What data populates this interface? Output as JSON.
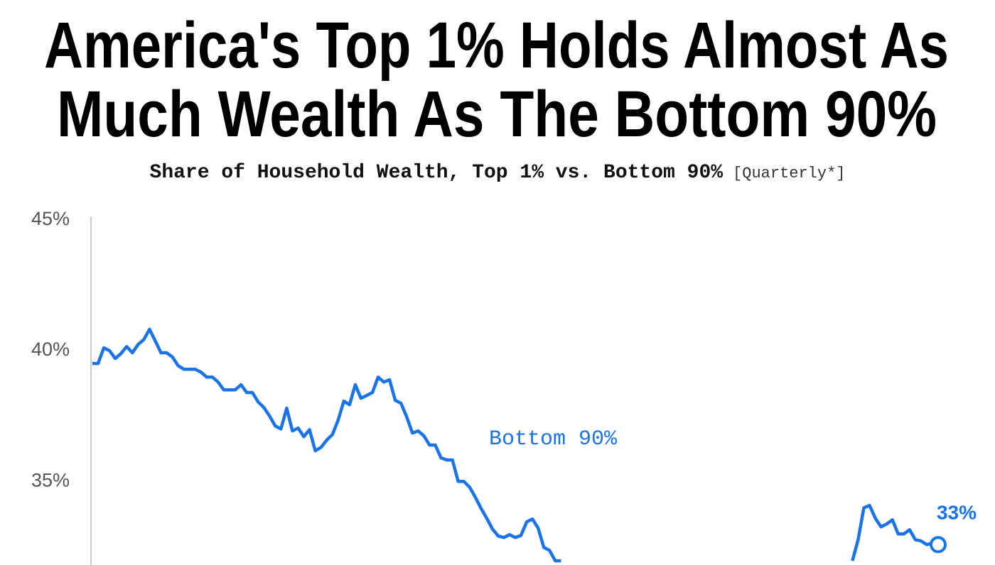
{
  "chart_data": {
    "type": "line",
    "title": [
      "America's Top 1% Holds Almost As",
      "Much Wealth As The Bottom 90%"
    ],
    "subtitle": "Share of Household Wealth, Top 1% vs. Bottom 90%",
    "subtitle_note": "[Quarterly*]",
    "ylim": [
      31.8,
      45
    ],
    "yticks": [
      {
        "value": 35,
        "label": "35%"
      },
      {
        "value": 40,
        "label": "40%"
      },
      {
        "value": 45,
        "label": "45%"
      }
    ],
    "grid": false,
    "series": [
      {
        "name": "Bottom 90%",
        "color": "#1a73e8",
        "end_label": "33%",
        "values": [
          39.51,
          39.51,
          40.11,
          40.0,
          39.7,
          39.89,
          40.16,
          39.92,
          40.24,
          40.43,
          40.82,
          40.38,
          39.92,
          39.92,
          39.76,
          39.43,
          39.29,
          39.29,
          39.29,
          39.18,
          38.99,
          38.99,
          38.8,
          38.5,
          38.5,
          38.5,
          38.7,
          38.4,
          38.4,
          38.04,
          37.83,
          37.5,
          37.12,
          37.01,
          37.8,
          36.93,
          37.04,
          36.71,
          36.98,
          36.17,
          36.3,
          36.58,
          36.79,
          37.34,
          38.07,
          37.93,
          38.7,
          38.18,
          38.29,
          38.4,
          38.99,
          38.8,
          38.89,
          38.1,
          37.99,
          37.47,
          36.85,
          36.93,
          36.74,
          36.39,
          36.39,
          35.9,
          35.82,
          35.82,
          35.0,
          35.0,
          34.78,
          34.4,
          33.97,
          33.59,
          33.18,
          32.91,
          32.85,
          32.96,
          32.85,
          32.93,
          33.45,
          33.56,
          33.21,
          32.47,
          32.36,
          31.96,
          31.96,
          null,
          null,
          null,
          null,
          null,
          null,
          null,
          null,
          null,
          null,
          null,
          null,
          null,
          null,
          null,
          null,
          null,
          null,
          null,
          null,
          null,
          null,
          null,
          null,
          null,
          null,
          null,
          null,
          null,
          null,
          null,
          null,
          null,
          null,
          null,
          null,
          null,
          null,
          null,
          null,
          null,
          null,
          null,
          null,
          null,
          null,
          null,
          null,
          null,
          null,
          31.96,
          32.77,
          33.99,
          34.08,
          33.59,
          33.26,
          33.37,
          33.53,
          32.99,
          32.99,
          33.15,
          32.77,
          32.72,
          32.58,
          32.64,
          32.58
        ]
      }
    ]
  }
}
